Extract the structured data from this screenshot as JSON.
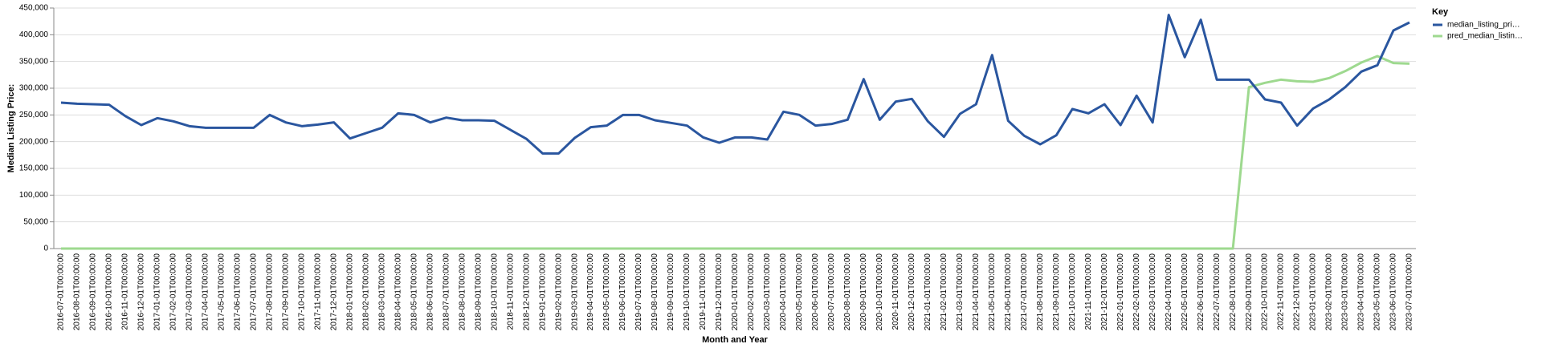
{
  "chart_data": {
    "type": "line",
    "x_label": "Month and Year",
    "y_label": "Median Listing Price:",
    "legend_title": "Key",
    "legend_position": "right",
    "grid": true,
    "categories": [
      "2016-07-01T00:00:00",
      "2016-08-01T00:00:00",
      "2016-09-01T00:00:00",
      "2016-10-01T00:00:00",
      "2016-11-01T00:00:00",
      "2016-12-01T00:00:00",
      "2017-01-01T00:00:00",
      "2017-02-01T00:00:00",
      "2017-03-01T00:00:00",
      "2017-04-01T00:00:00",
      "2017-05-01T00:00:00",
      "2017-06-01T00:00:00",
      "2017-07-01T00:00:00",
      "2017-08-01T00:00:00",
      "2017-09-01T00:00:00",
      "2017-10-01T00:00:00",
      "2017-11-01T00:00:00",
      "2017-12-01T00:00:00",
      "2018-01-01T00:00:00",
      "2018-02-01T00:00:00",
      "2018-03-01T00:00:00",
      "2018-04-01T00:00:00",
      "2018-05-01T00:00:00",
      "2018-06-01T00:00:00",
      "2018-07-01T00:00:00",
      "2018-08-01T00:00:00",
      "2018-09-01T00:00:00",
      "2018-10-01T00:00:00",
      "2018-11-01T00:00:00",
      "2018-12-01T00:00:00",
      "2019-01-01T00:00:00",
      "2019-02-01T00:00:00",
      "2019-03-01T00:00:00",
      "2019-04-01T00:00:00",
      "2019-05-01T00:00:00",
      "2019-06-01T00:00:00",
      "2019-07-01T00:00:00",
      "2019-08-01T00:00:00",
      "2019-09-01T00:00:00",
      "2019-10-01T00:00:00",
      "2019-11-01T00:00:00",
      "2019-12-01T00:00:00",
      "2020-01-01T00:00:00",
      "2020-02-01T00:00:00",
      "2020-03-01T00:00:00",
      "2020-04-01T00:00:00",
      "2020-05-01T00:00:00",
      "2020-06-01T00:00:00",
      "2020-07-01T00:00:00",
      "2020-08-01T00:00:00",
      "2020-09-01T00:00:00",
      "2020-10-01T00:00:00",
      "2020-11-01T00:00:00",
      "2020-12-01T00:00:00",
      "2021-01-01T00:00:00",
      "2021-02-01T00:00:00",
      "2021-03-01T00:00:00",
      "2021-04-01T00:00:00",
      "2021-05-01T00:00:00",
      "2021-06-01T00:00:00",
      "2021-07-01T00:00:00",
      "2021-08-01T00:00:00",
      "2021-09-01T00:00:00",
      "2021-10-01T00:00:00",
      "2021-11-01T00:00:00",
      "2021-12-01T00:00:00",
      "2022-01-01T00:00:00",
      "2022-02-01T00:00:00",
      "2022-03-01T00:00:00",
      "2022-04-01T00:00:00",
      "2022-05-01T00:00:00",
      "2022-06-01T00:00:00",
      "2022-07-01T00:00:00",
      "2022-08-01T00:00:00",
      "2022-09-01T00:00:00",
      "2022-10-01T00:00:00",
      "2022-11-01T00:00:00",
      "2022-12-01T00:00:00",
      "2023-01-01T00:00:00",
      "2023-02-01T00:00:00",
      "2023-03-01T00:00:00",
      "2023-04-01T00:00:00",
      "2023-05-01T00:00:00",
      "2023-06-01T00:00:00",
      "2023-07-01T00:00:00"
    ],
    "series": [
      {
        "name": "median_listing_pri…",
        "color": "#2a569f",
        "values": [
          273000,
          271000,
          270000,
          269000,
          248000,
          231000,
          244000,
          238000,
          229000,
          226000,
          226000,
          226000,
          226000,
          250000,
          236000,
          229000,
          232000,
          236000,
          206000,
          216000,
          226000,
          253000,
          250000,
          236000,
          245000,
          240000,
          240000,
          239000,
          222000,
          205000,
          178000,
          178000,
          207000,
          227000,
          230000,
          250000,
          250000,
          240000,
          235000,
          230000,
          208000,
          198000,
          208000,
          208000,
          204000,
          256000,
          250000,
          230000,
          233000,
          241000,
          317000,
          241000,
          275000,
          280000,
          238000,
          209000,
          252000,
          270000,
          362000,
          239000,
          211000,
          195000,
          212000,
          261000,
          253000,
          270000,
          231000,
          286000,
          236000,
          437000,
          358000,
          428000,
          316000,
          316000,
          316000,
          279000,
          273000,
          230000,
          262000,
          279000,
          302000,
          331000,
          343000,
          408000,
          423000
        ]
      },
      {
        "name": "pred_median_listin…",
        "color": "#9ed98f",
        "values": [
          0,
          0,
          0,
          0,
          0,
          0,
          0,
          0,
          0,
          0,
          0,
          0,
          0,
          0,
          0,
          0,
          0,
          0,
          0,
          0,
          0,
          0,
          0,
          0,
          0,
          0,
          0,
          0,
          0,
          0,
          0,
          0,
          0,
          0,
          0,
          0,
          0,
          0,
          0,
          0,
          0,
          0,
          0,
          0,
          0,
          0,
          0,
          0,
          0,
          0,
          0,
          0,
          0,
          0,
          0,
          0,
          0,
          0,
          0,
          0,
          0,
          0,
          0,
          0,
          0,
          0,
          0,
          0,
          0,
          0,
          0,
          0,
          0,
          0,
          302000,
          310000,
          316000,
          313000,
          312000,
          319000,
          332000,
          348000,
          360000,
          347000,
          346000
        ]
      }
    ],
    "ylim": [
      0,
      450000
    ],
    "yticks": [
      0,
      {
        "value": 50000,
        "label": "50,000"
      },
      {
        "value": 100000,
        "label": "100,000"
      },
      {
        "value": 150000,
        "label": "150,000"
      },
      {
        "value": 200000,
        "label": "200,000"
      },
      {
        "value": 250000,
        "label": "250,000"
      },
      {
        "value": 300000,
        "label": "300,000"
      },
      {
        "value": 350000,
        "label": "350,000"
      },
      {
        "value": 400000,
        "label": "400,000"
      },
      {
        "value": 450000,
        "label": "450,000"
      }
    ]
  }
}
